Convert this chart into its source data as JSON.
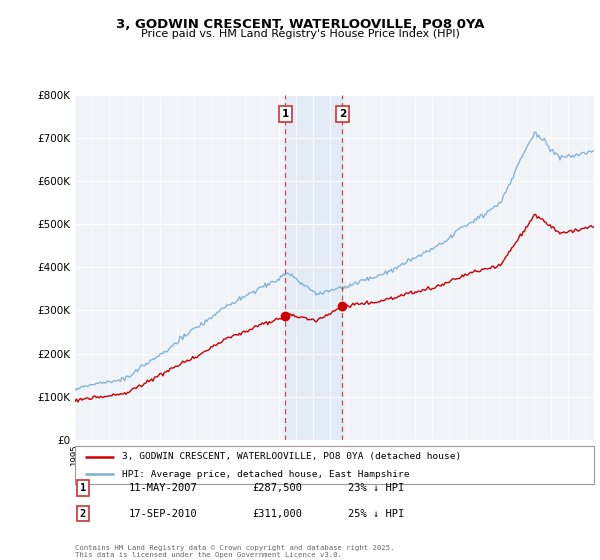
{
  "title": "3, GODWIN CRESCENT, WATERLOOVILLE, PO8 0YA",
  "subtitle": "Price paid vs. HM Land Registry's House Price Index (HPI)",
  "legend_line1": "3, GODWIN CRESCENT, WATERLOOVILLE, PO8 0YA (detached house)",
  "legend_line2": "HPI: Average price, detached house, East Hampshire",
  "annotation1_label": "1",
  "annotation1_date": "11-MAY-2007",
  "annotation1_price": "£287,500",
  "annotation1_hpi": "23% ↓ HPI",
  "annotation2_label": "2",
  "annotation2_date": "17-SEP-2010",
  "annotation2_price": "£311,000",
  "annotation2_hpi": "25% ↓ HPI",
  "copyright": "Contains HM Land Registry data © Crown copyright and database right 2025.\nThis data is licensed under the Open Government Licence v3.0.",
  "sale1_year": 2007.36,
  "sale1_price": 287500,
  "sale2_year": 2010.71,
  "sale2_price": 311000,
  "hpi_color": "#7aafd4",
  "price_color": "#cc0000",
  "background_color": "#ffffff",
  "plot_bg_color": "#f0f4f8",
  "ylim_max": 800000,
  "xlim_start": 1995.0,
  "xlim_end": 2025.5,
  "yticks": [
    0,
    100000,
    200000,
    300000,
    400000,
    500000,
    600000,
    700000,
    800000
  ],
  "ylabels": [
    "£0",
    "£100K",
    "£200K",
    "£300K",
    "£400K",
    "£500K",
    "£600K",
    "£700K",
    "£800K"
  ]
}
